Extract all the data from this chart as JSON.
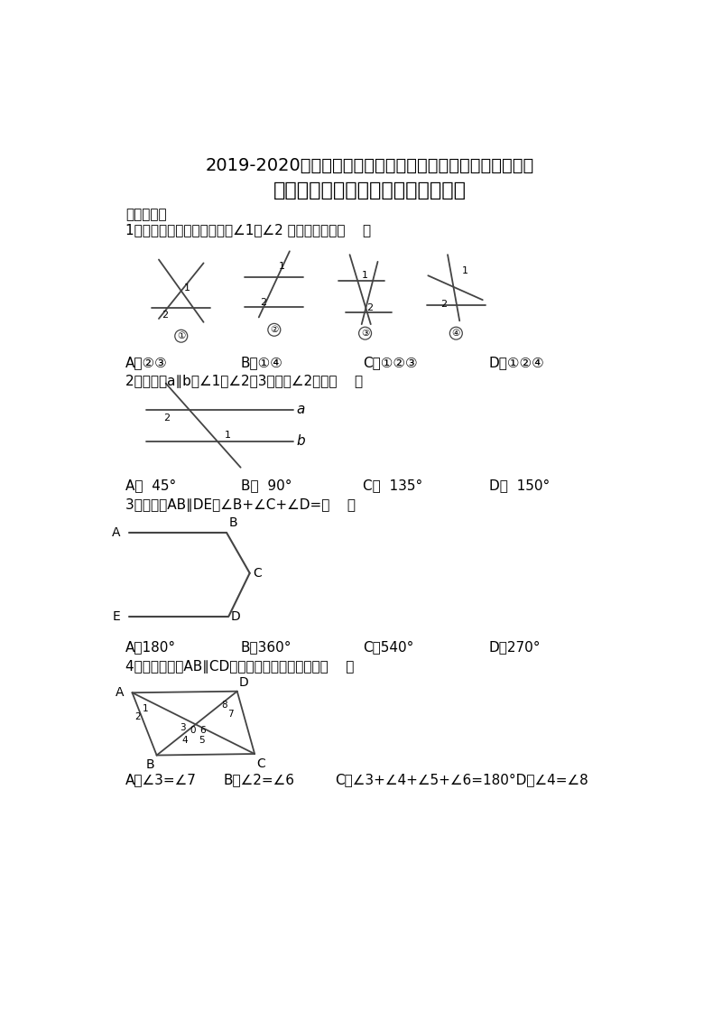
{
  "title1": "2019-2020学年度山东滕州鲍沟中学第二学期复学章节检测题",
  "title2": "七年级数学第二章：相交线与平行线",
  "section1": "一、单选题",
  "q1_text": "1．下列所示的四个图形中，∠1＝∠2 是同位角的是（    ）",
  "q1_opts": [
    "A．②③",
    "B．①④",
    "C．①②③",
    "D．①②④"
  ],
  "q2_text": "2．如图，a∥b，∠1是∠2的3倍，则∠2等于（    ）",
  "q2_opts": [
    "A．  45°",
    "B．  90°",
    "C．  135°",
    "D．  150°"
  ],
  "q3_text": "3．如图，AB∥DE，∠B+∠C+∠D=（    ）",
  "q3_opts": [
    "A．180°",
    "B．360°",
    "C．540°",
    "D．270°"
  ],
  "q4_text": "4．如图，如果AB∥CD，那么下面说法错误的是（    ）",
  "q4_opts": [
    "A．∠3=∠7",
    "B．∠2=∠6",
    "C．∠3+∠4+∠5+∠6=180°D．∠4=∠8"
  ],
  "bg_color": "#ffffff",
  "lc": "#444444"
}
